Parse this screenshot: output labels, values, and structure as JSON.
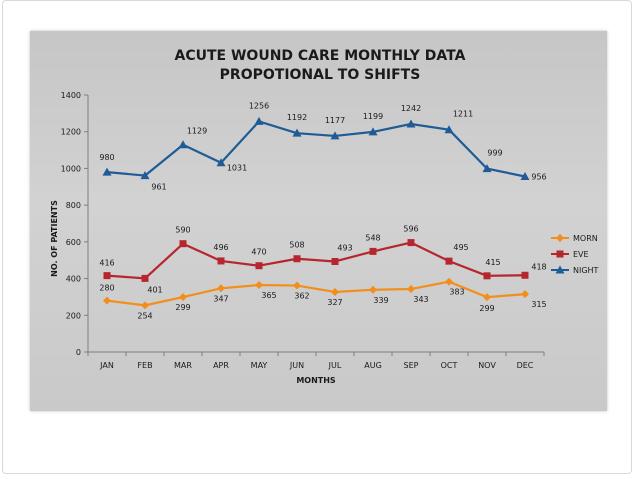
{
  "chart_data": {
    "type": "line",
    "title_lines": [
      "ACUTE WOUND CARE MONTHLY DATA",
      "PROPOTIONAL TO SHIFTS"
    ],
    "xlabel": "MONTHS",
    "ylabel": "NO. OF PATIENTS",
    "ylim": [
      0,
      1400
    ],
    "yticks": [
      0,
      200,
      400,
      600,
      800,
      1000,
      1200,
      1400
    ],
    "grid": false,
    "legend_position": "right",
    "categories": [
      "JAN",
      "FEB",
      "MAR",
      "APR",
      "MAY",
      "JUN",
      "JUL",
      "AUG",
      "SEP",
      "OCT",
      "NOV",
      "DEC"
    ],
    "series": [
      {
        "name": "MORN",
        "color": "#f28e1c",
        "marker": "diamond",
        "values": [
          280,
          254,
          299,
          347,
          365,
          362,
          327,
          339,
          343,
          383,
          299,
          315
        ]
      },
      {
        "name": "EVE",
        "color": "#b5262e",
        "marker": "square",
        "values": [
          416,
          401,
          590,
          496,
          470,
          508,
          493,
          548,
          596,
          495,
          415,
          418
        ]
      },
      {
        "name": "NIGHT",
        "color": "#1f5c96",
        "marker": "triangle",
        "values": [
          980,
          961,
          1129,
          1031,
          1256,
          1192,
          1177,
          1199,
          1242,
          1211,
          999,
          956
        ]
      }
    ]
  }
}
